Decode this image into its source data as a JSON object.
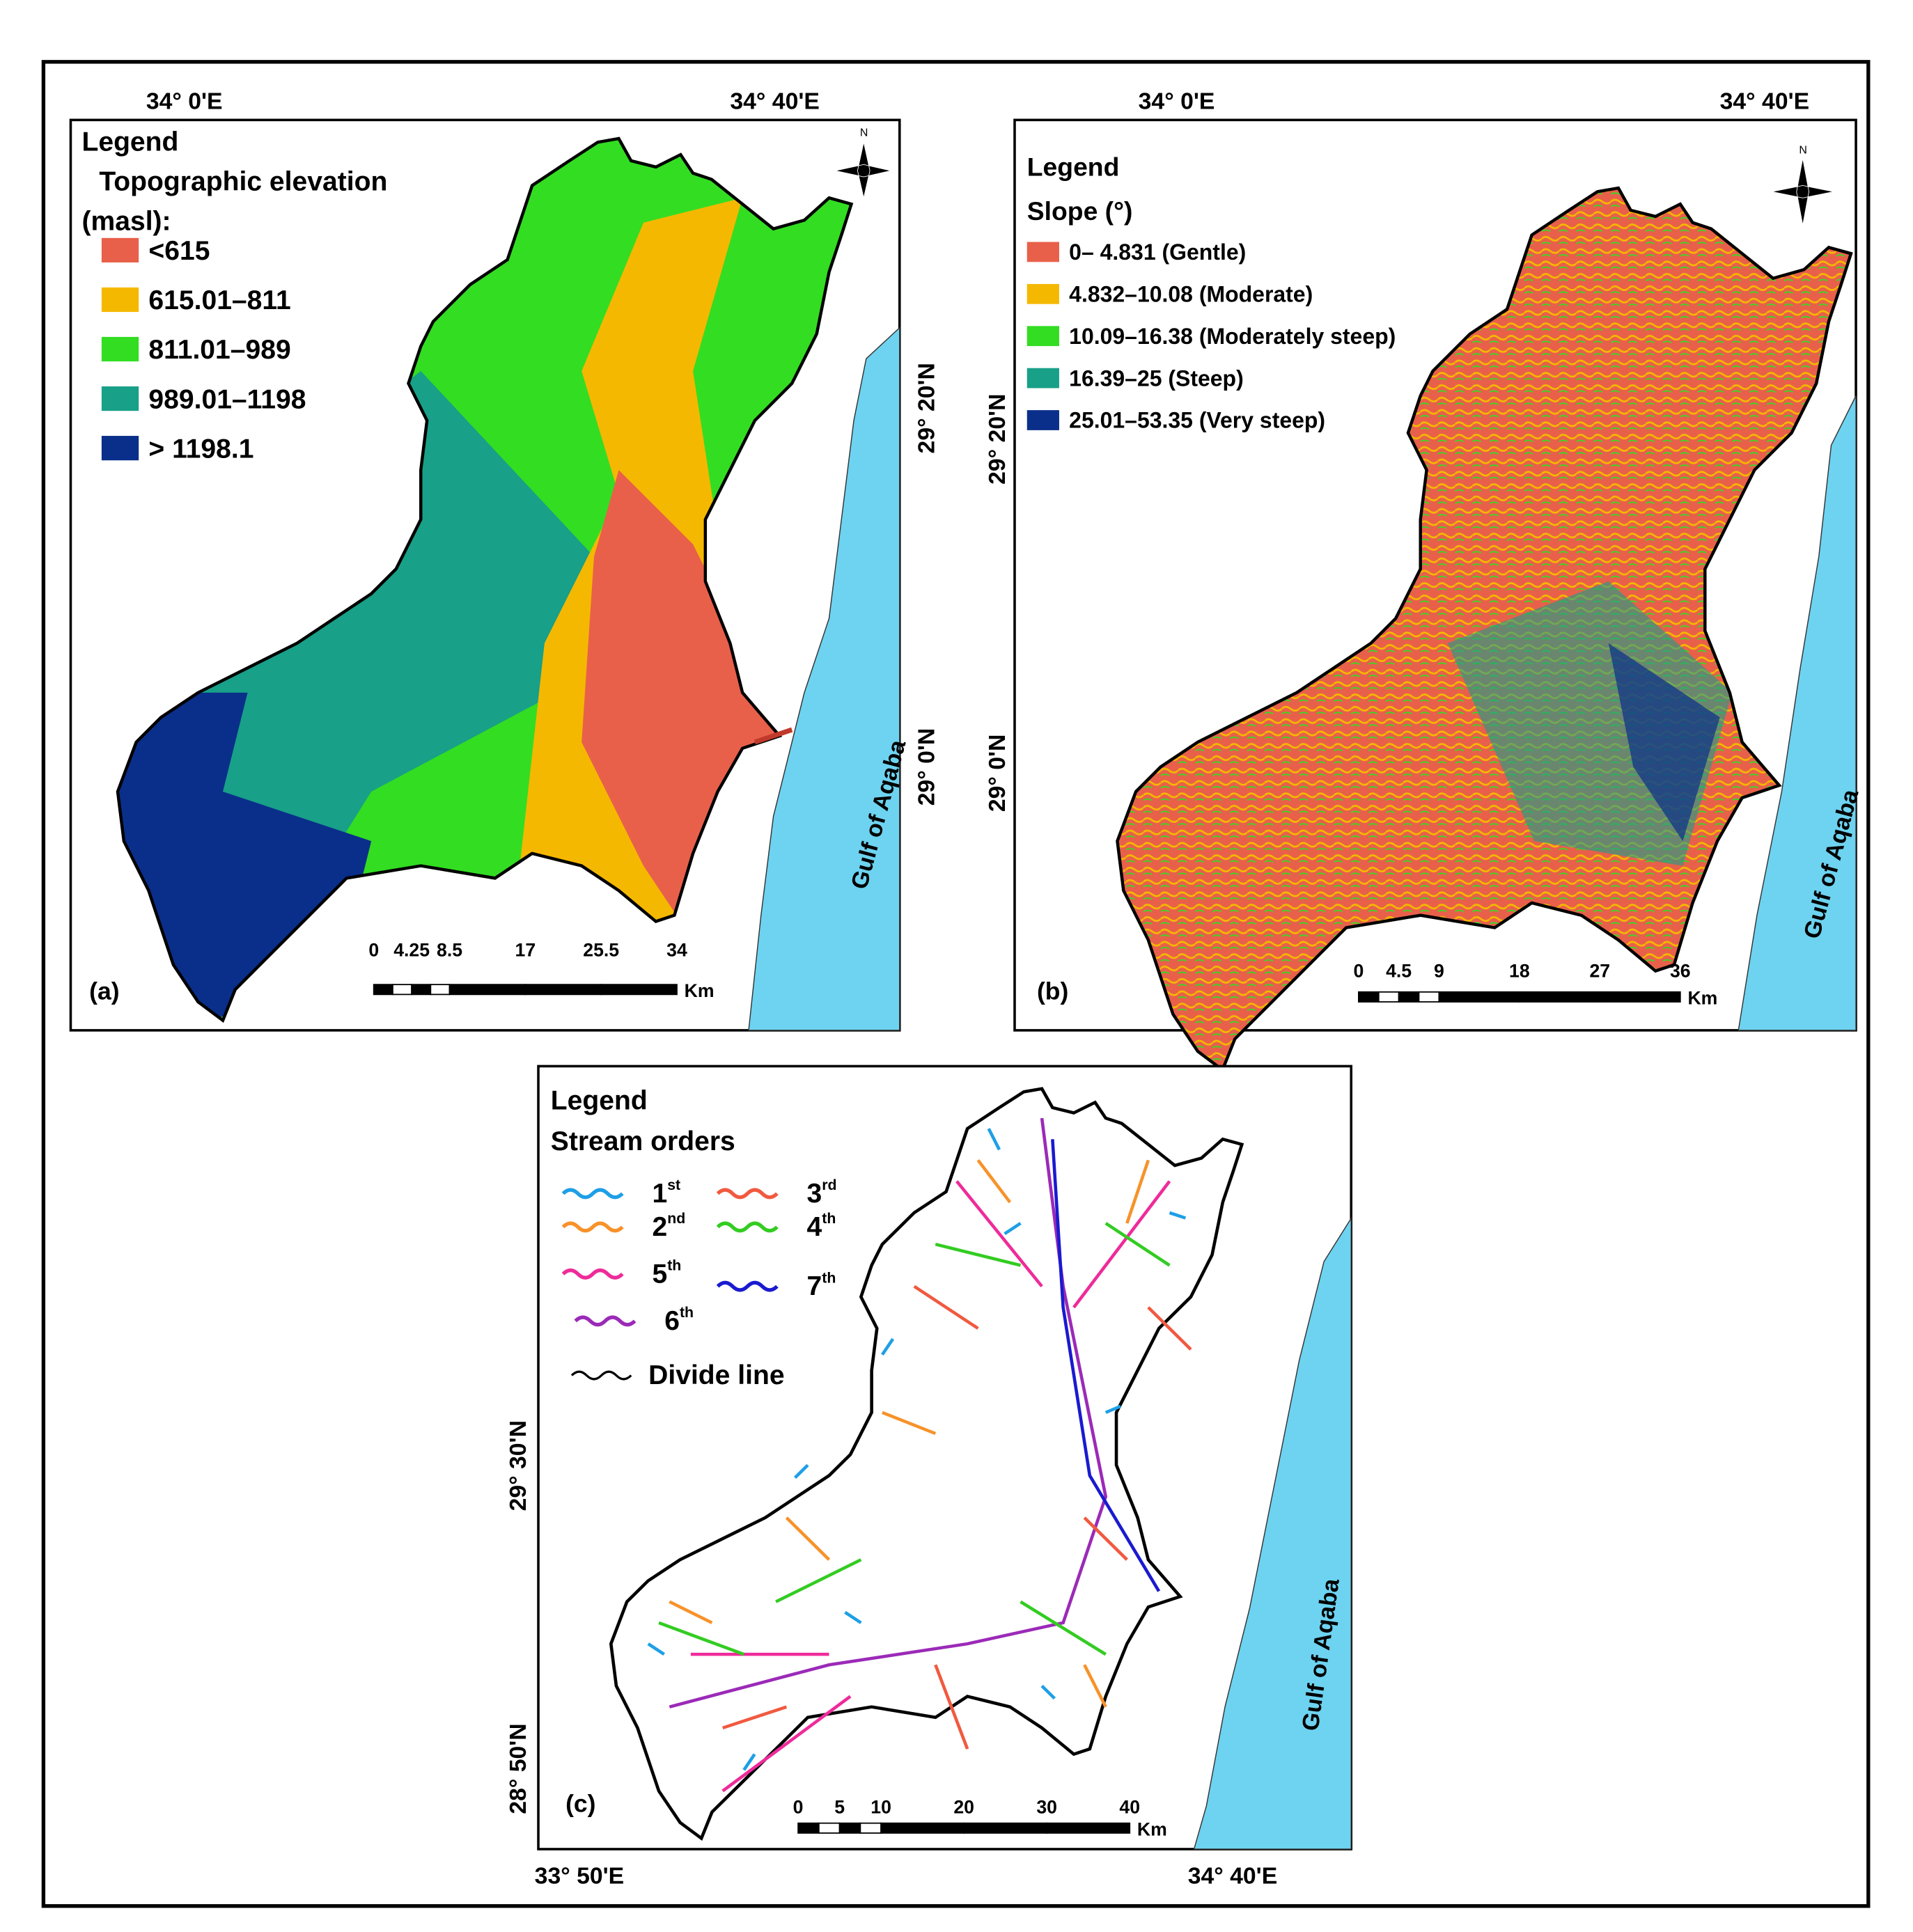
{
  "panels": [
    {
      "label": "(a)",
      "legend_title": "Legend",
      "legend_subtitle": [
        "Topographic elevation",
        "(masl):"
      ],
      "legend_items": [
        {
          "text": "<615",
          "color": "#e8604a"
        },
        {
          "text": "615.01–811",
          "color": "#f5b800"
        },
        {
          "text": "811.01–989",
          "color": "#33dd22"
        },
        {
          "text": "989.01–1198",
          "color": "#18a088"
        },
        {
          "text": "> 1198.1",
          "color": "#0a2f8a"
        }
      ],
      "top_coords": [
        "34° 0'E",
        "34° 40'E"
      ],
      "side_coords": [
        "29° 20'N",
        "29° 0'N"
      ],
      "north": "N",
      "scale_labels": [
        "0",
        "4.25",
        "8.5",
        "17",
        "25.5",
        "34"
      ],
      "scale_unit": "Km",
      "sea": "Gulf of Aqaba"
    },
    {
      "label": "(b)",
      "legend_title": "Legend",
      "legend_subtitle": [
        "Slope (°)"
      ],
      "legend_items": [
        {
          "text": "0– 4.831 (Gentle)",
          "color": "#e8604a"
        },
        {
          "text": "4.832–10.08 (Moderate)",
          "color": "#f5b800"
        },
        {
          "text": "10.09–16.38 (Moderately steep)",
          "color": "#33dd22"
        },
        {
          "text": "16.39–25 (Steep)",
          "color": "#18a088"
        },
        {
          "text": "25.01–53.35 (Very steep)",
          "color": "#0a2f8a"
        }
      ],
      "top_coords": [
        "34° 0'E",
        "34° 40'E"
      ],
      "side_coords": [
        "29° 20'N",
        "29° 0'N"
      ],
      "north": "N",
      "scale_labels": [
        "0",
        "4.5",
        "9",
        "18",
        "27",
        "36"
      ],
      "scale_unit": "Km",
      "sea": "Gulf of Aqaba"
    },
    {
      "label": "(c)",
      "legend_title": "Legend",
      "legend_subtitle": [
        "Stream orders"
      ],
      "legend_items": [
        {
          "text": "1",
          "sup": "st",
          "color": "#1e9fe6"
        },
        {
          "text": "2",
          "sup": "nd",
          "color": "#f7922a"
        },
        {
          "text": "3",
          "sup": "rd",
          "color": "#f05a40"
        },
        {
          "text": "4",
          "sup": "th",
          "color": "#33cc22"
        },
        {
          "text": "5",
          "sup": "th",
          "color": "#ee2b9a"
        },
        {
          "text": "7",
          "sup": "th",
          "color": "#1a1ad0"
        },
        {
          "text": "6",
          "sup": "th",
          "color": "#9b2ab8"
        },
        {
          "text": "Divide line",
          "color": "#000000"
        }
      ],
      "bottom_coords": [
        "33° 50'E",
        "34° 40'E"
      ],
      "side_coords": [
        "29° 30'N",
        "28° 50'N"
      ],
      "scale_labels": [
        "0",
        "5",
        "10",
        "20",
        "30",
        "40"
      ],
      "scale_unit": "Km",
      "sea": "Gulf of Aqaba"
    }
  ]
}
